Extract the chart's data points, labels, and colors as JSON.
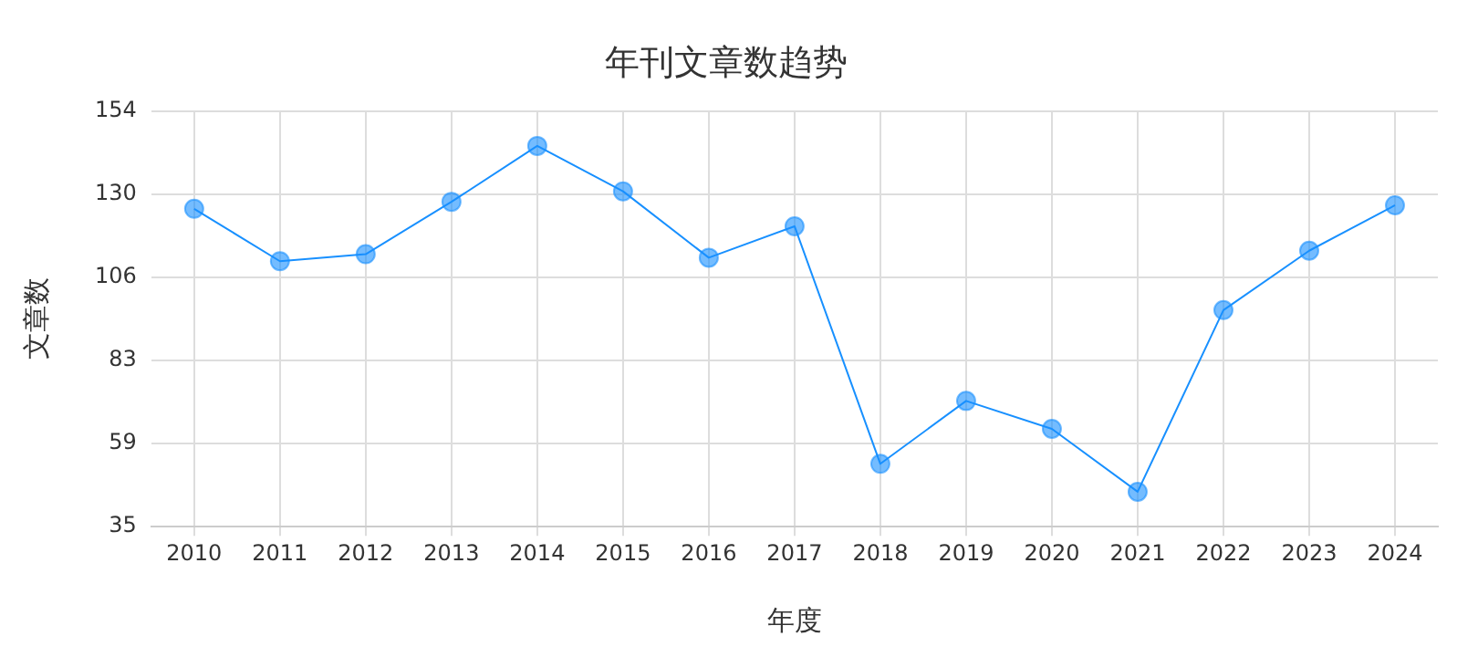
{
  "chart_data": {
    "type": "line",
    "title": "年刊文章数趋势",
    "xlabel": "年度",
    "ylabel": "文章数",
    "categories": [
      "2010",
      "2011",
      "2012",
      "2013",
      "2014",
      "2015",
      "2016",
      "2017",
      "2018",
      "2019",
      "2020",
      "2021",
      "2022",
      "2023",
      "2024"
    ],
    "series": [
      {
        "color": "#1890ff",
        "values": [
          126,
          111,
          113,
          128,
          144,
          131,
          112,
          121,
          53,
          71,
          63,
          45,
          97,
          114,
          127
        ]
      }
    ],
    "ylim": [
      35,
      154
    ],
    "yticks": [
      35,
      {
        "value": 58.8,
        "label": "59"
      },
      {
        "value": 82.6,
        "label": "83"
      },
      {
        "value": 106.4,
        "label": "106"
      },
      {
        "value": 130.2,
        "label": "130"
      },
      154
    ],
    "grid": true,
    "legend": false,
    "marker": "circle",
    "line_style": "solid"
  }
}
